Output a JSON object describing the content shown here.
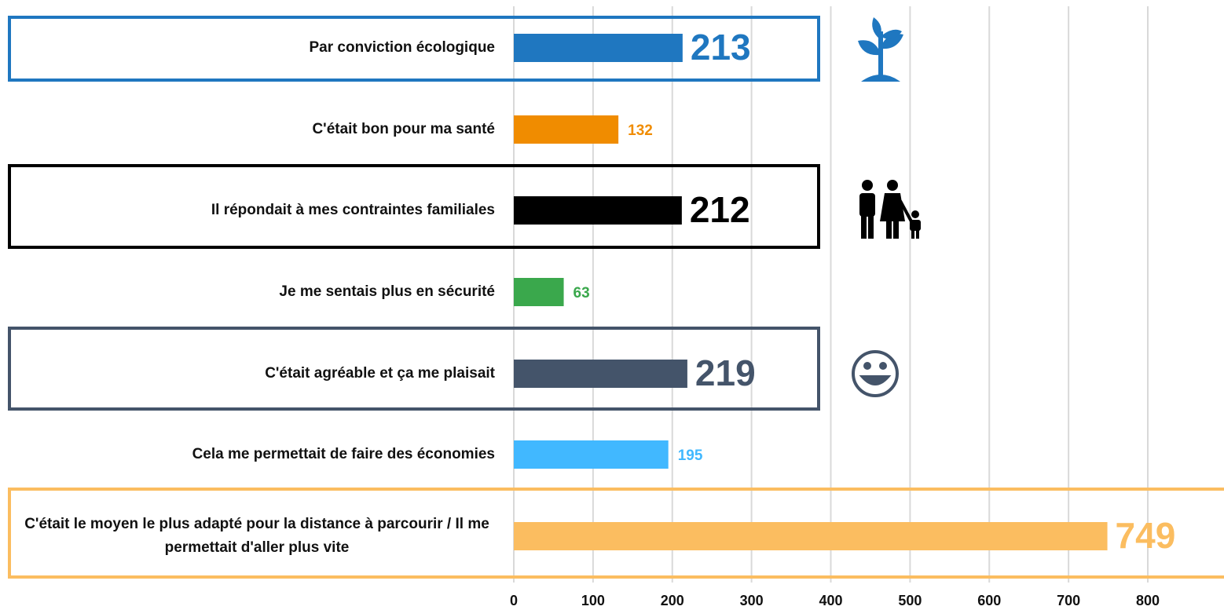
{
  "chart_data": {
    "type": "barh",
    "categories": [
      "Par conviction écologique",
      "C'était bon pour ma santé",
      "Il répondait à mes contraintes familiales",
      "Je me sentais plus en sécurité",
      "C'était agréable et ça me plaisait",
      "Cela me permettait de faire des économies",
      "C'était le moyen le plus adapté pour la distance à parcourir / Il me permettait d'aller plus vite"
    ],
    "values": [
      213,
      132,
      212,
      63,
      219,
      195,
      749
    ],
    "colors": [
      "#1f77c0",
      "#f08c00",
      "#000000",
      "#3aa84c",
      "#44546a",
      "#41b8ff",
      "#fbbd60"
    ],
    "xlim": [
      0,
      800
    ],
    "xticks": [
      0,
      100,
      200,
      300,
      400,
      500,
      600,
      700,
      800
    ],
    "grid": true
  }
}
